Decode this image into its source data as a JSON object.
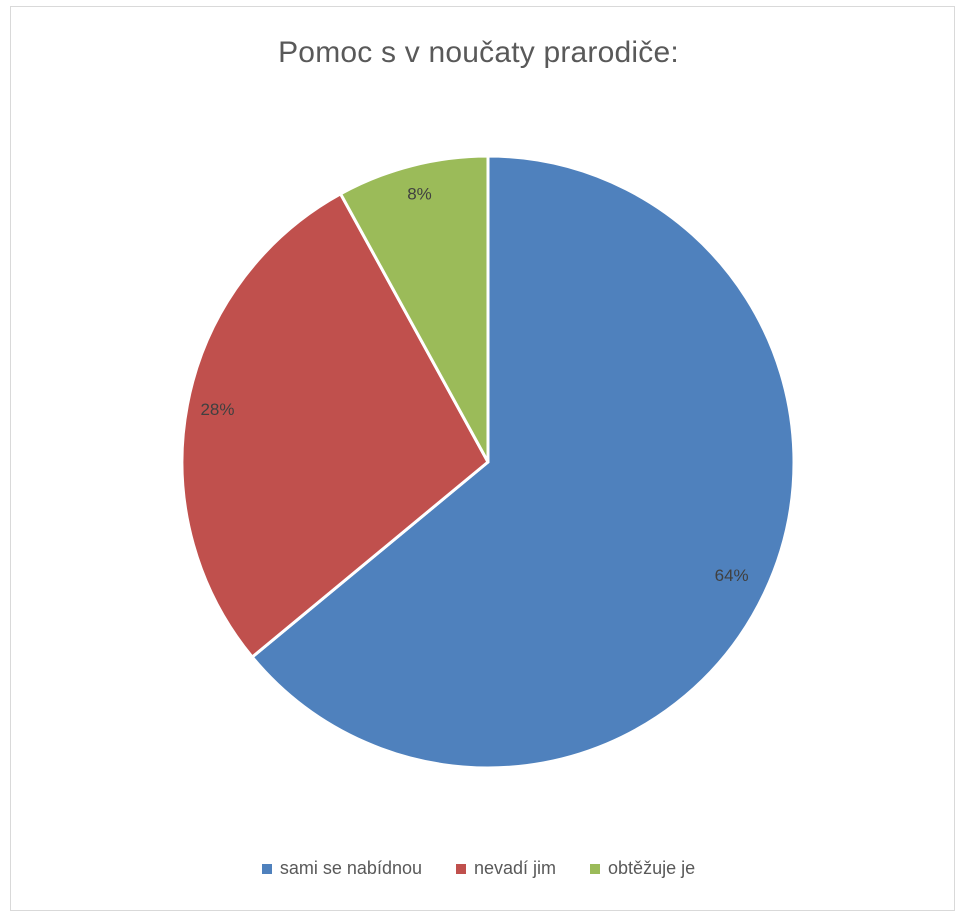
{
  "chart_data": {
    "type": "pie",
    "title": "Pomoc s v noučaty prarodiče:",
    "categories": [
      "sami se nabídnou",
      "nevadí jim",
      "obtěžuje je"
    ],
    "values": [
      64,
      28,
      8
    ],
    "labels": [
      "64%",
      "28%",
      "8%"
    ],
    "colors": [
      "#4f81bd",
      "#c0504d",
      "#9bbb59"
    ],
    "legend_position": "bottom"
  }
}
